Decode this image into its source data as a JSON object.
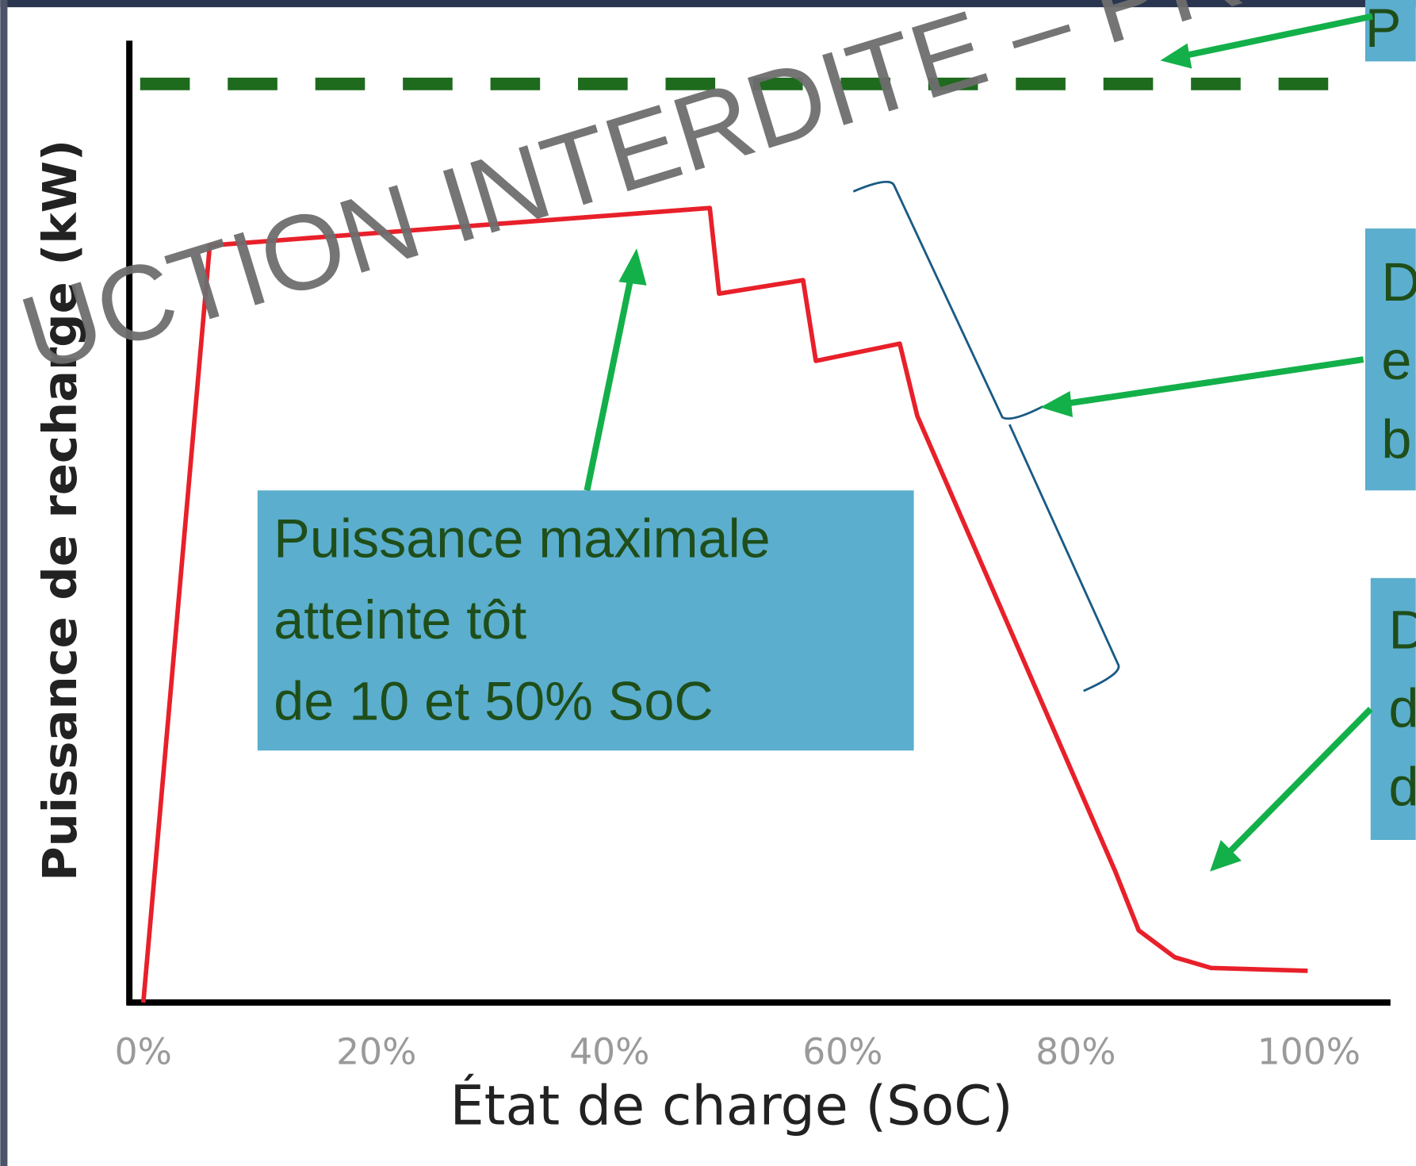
{
  "chart_data": {
    "type": "line",
    "x_label": "État de charge (SoC)",
    "y_label": "Puissance de recharge (kW)",
    "x": [
      0,
      5.7,
      48.6,
      49.4,
      56.6,
      57.7,
      64.9,
      66.4,
      83.4,
      85.4,
      88.5,
      91.6,
      99.9
    ],
    "values": [
      0,
      78.7,
      82.6,
      73.7,
      75.1,
      66.7,
      68.5,
      61.0,
      13.6,
      7.5,
      4.7,
      3.6,
      3.3
    ],
    "color": "#e8202a",
    "xlim": [
      -1.2,
      107
    ],
    "ylim": [
      0,
      100
    ],
    "xticks": [
      {
        "value": 0,
        "label": "0%"
      },
      {
        "value": 20,
        "label": "20%"
      },
      {
        "value": 40,
        "label": "40%"
      },
      {
        "value": 60,
        "label": "60%"
      },
      {
        "value": 80,
        "label": "80%"
      },
      {
        "value": 100,
        "label": "100%"
      }
    ],
    "reference_line": {
      "value": 95.5,
      "color": "#1e6b1e"
    },
    "annotations": [
      {
        "lines": [
          "Puissance maximale",
          "atteinte tôt",
          "de 10 et 50% SoC"
        ]
      },
      {
        "lines": [
          "P"
        ]
      },
      {
        "lines": [
          "D",
          "e",
          "b"
        ]
      },
      {
        "lines": [
          "D",
          "d",
          "d"
        ]
      }
    ],
    "watermark": "UCTION INTERDITE – PROP"
  }
}
